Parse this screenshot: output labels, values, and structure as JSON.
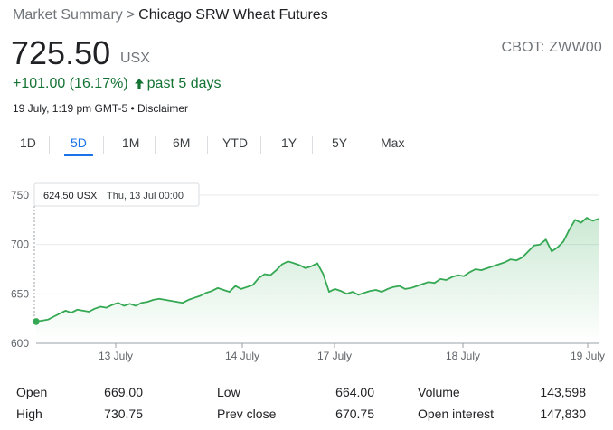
{
  "header": {
    "breadcrumb_root": "Market Summary",
    "breadcrumb_sep": ">",
    "breadcrumb_current": "Chicago SRW Wheat Futures",
    "exchange_symbol": "CBOT: ZWW00"
  },
  "quote": {
    "price": "725.50",
    "currency": "USX",
    "change": "+101.00 (16.17%)",
    "period": "past 5 days",
    "timestamp": "19 July, 1:19 pm GMT-5 • Disclaimer",
    "change_color": "#137333"
  },
  "ranges": [
    "1D",
    "5D",
    "1M",
    "6M",
    "YTD",
    "1Y",
    "5Y",
    "Max"
  ],
  "active_range": "5D",
  "tooltip": {
    "value": "624.50 USX",
    "date": "Thu, 13 Jul 00:00"
  },
  "chart_data": {
    "type": "line",
    "y_ticks": [
      "750",
      "700",
      "650",
      "600"
    ],
    "ylim": [
      600,
      750
    ],
    "x_ticks": [
      "13 July",
      "14 July",
      "17 July",
      "18 July",
      "19 July"
    ],
    "series": [
      {
        "color": "#34a853",
        "values": [
          622,
          623,
          624,
          627,
          630,
          633,
          631,
          634,
          633,
          632,
          635,
          637,
          636,
          639,
          641,
          638,
          640,
          638,
          641,
          642,
          644,
          645,
          644,
          643,
          642,
          641,
          644,
          646,
          648,
          651,
          653,
          656,
          654,
          652,
          658,
          655,
          657,
          659,
          666,
          670,
          669,
          674,
          680,
          683,
          681,
          679,
          676,
          678,
          681,
          670,
          652,
          655,
          653,
          650,
          652,
          649,
          651,
          653,
          654,
          652,
          655,
          657,
          658,
          655,
          656,
          658,
          660,
          662,
          661,
          665,
          664,
          667,
          669,
          668,
          672,
          675,
          674,
          676,
          678,
          680,
          682,
          685,
          684,
          687,
          693,
          699,
          700,
          705,
          693,
          697,
          703,
          715,
          725,
          722,
          727,
          724,
          726
        ]
      }
    ],
    "start_value": 622,
    "grid": true
  },
  "stats": [
    {
      "label": "Open",
      "value": "669.00"
    },
    {
      "label": "High",
      "value": "730.75"
    },
    {
      "label": "Low",
      "value": "664.00"
    },
    {
      "label": "Prev close",
      "value": "670.75"
    },
    {
      "label": "Volume",
      "value": "143,598"
    },
    {
      "label": "Open interest",
      "value": "147,830"
    }
  ]
}
